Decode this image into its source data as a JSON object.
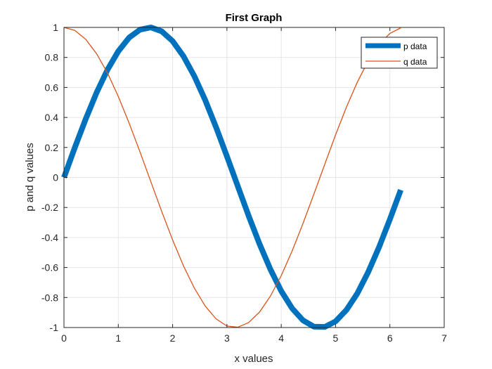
{
  "chart_data": {
    "type": "line",
    "title": "First Graph",
    "xlabel": "x values",
    "ylabel": "p and q values",
    "xlim": [
      0,
      7
    ],
    "ylim": [
      -1,
      1
    ],
    "xticks": [
      0,
      1,
      2,
      3,
      4,
      5,
      6,
      7
    ],
    "xtick_labels": [
      "0",
      "1",
      "2",
      "3",
      "4",
      "5",
      "6",
      "7"
    ],
    "yticks": [
      -1,
      -0.8,
      -0.6,
      -0.4,
      -0.2,
      0,
      0.2,
      0.4,
      0.6,
      0.8,
      1
    ],
    "ytick_labels": [
      "-1",
      "-0.8",
      "-0.6",
      "-0.4",
      "-0.2",
      "0",
      "0.2",
      "0.4",
      "0.6",
      "0.8",
      "1"
    ],
    "grid": true,
    "legend_position": "top-right",
    "x": [
      0,
      0.2,
      0.4,
      0.6,
      0.8,
      1.0,
      1.2,
      1.4,
      1.6,
      1.8,
      2.0,
      2.2,
      2.4,
      2.6,
      2.8,
      3.0,
      3.2,
      3.4,
      3.6,
      3.8,
      4.0,
      4.2,
      4.4,
      4.6,
      4.8,
      5.0,
      5.2,
      5.4,
      5.6,
      5.8,
      6.0,
      6.2
    ],
    "series": [
      {
        "name": "p data",
        "color": "#0072bd",
        "line_style": "thick",
        "values": [
          0,
          0.199,
          0.389,
          0.565,
          0.717,
          0.841,
          0.932,
          0.985,
          1.0,
          0.974,
          0.909,
          0.808,
          0.675,
          0.516,
          0.335,
          0.141,
          -0.058,
          -0.256,
          -0.443,
          -0.612,
          -0.757,
          -0.872,
          -0.952,
          -0.994,
          -0.996,
          -0.959,
          -0.883,
          -0.773,
          -0.631,
          -0.465,
          -0.279,
          -0.083
        ]
      },
      {
        "name": "q data",
        "color": "#d95319",
        "line_style": "thin",
        "values": [
          1.0,
          0.98,
          0.921,
          0.825,
          0.697,
          0.54,
          0.362,
          0.17,
          -0.029,
          -0.227,
          -0.416,
          -0.589,
          -0.737,
          -0.857,
          -0.942,
          -0.99,
          -0.998,
          -0.967,
          -0.897,
          -0.791,
          -0.654,
          -0.49,
          -0.307,
          -0.112,
          0.087,
          0.284,
          0.469,
          0.635,
          0.776,
          0.886,
          0.96,
          0.997
        ]
      }
    ]
  }
}
